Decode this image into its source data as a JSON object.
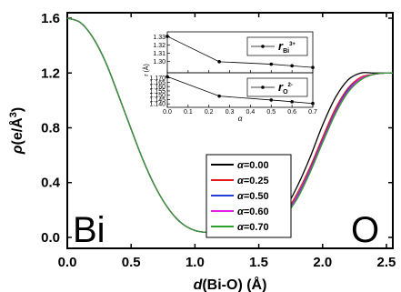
{
  "chart_data": [
    {
      "type": "line",
      "xlabel_parts": [
        "d",
        "(Bi-O) (Å)"
      ],
      "ylabel_parts": [
        "ρ",
        "(e/Å",
        "3",
        ")"
      ],
      "xlim": [
        0.0,
        2.55
      ],
      "ylim": [
        -0.08,
        1.64
      ],
      "xticks": [
        0.0,
        0.5,
        1.0,
        1.5,
        2.0,
        2.5
      ],
      "xtick_labels": [
        "0.0",
        "0.5",
        "1.0",
        "1.5",
        "2.0",
        "2.5"
      ],
      "yticks": [
        0.0,
        0.4,
        0.8,
        1.2,
        1.6
      ],
      "ytick_labels": [
        "0.0",
        "0.4",
        "0.8",
        "1.2",
        "1.6"
      ],
      "annotations": {
        "left": "Bi",
        "right": "O"
      },
      "legend_placement": "center",
      "legend_symbol": "α",
      "series": [
        {
          "name": "=0.00",
          "color": "#000000",
          "x": [
            0.0,
            0.1,
            0.2,
            0.3,
            0.4,
            0.5,
            0.6,
            0.7,
            0.8,
            0.9,
            1.0,
            1.1,
            1.2,
            1.3,
            1.4,
            1.5,
            1.6,
            1.7,
            1.8,
            1.9,
            2.0,
            2.1,
            2.2,
            2.3,
            2.4,
            2.5,
            2.55
          ],
          "y": [
            1.6,
            1.57,
            1.46,
            1.28,
            1.04,
            0.79,
            0.55,
            0.35,
            0.2,
            0.1,
            0.05,
            0.035,
            0.03,
            0.03,
            0.035,
            0.05,
            0.1,
            0.2,
            0.37,
            0.58,
            0.82,
            1.02,
            1.15,
            1.2,
            1.2,
            1.2,
            1.2
          ]
        },
        {
          "name": "=0.25",
          "color": "#e41a1c",
          "x": [
            0.0,
            0.1,
            0.2,
            0.3,
            0.4,
            0.5,
            0.6,
            0.7,
            0.8,
            0.9,
            1.0,
            1.1,
            1.2,
            1.3,
            1.4,
            1.5,
            1.6,
            1.7,
            1.8,
            1.9,
            2.0,
            2.1,
            2.2,
            2.3,
            2.4,
            2.5,
            2.55
          ],
          "y": [
            1.6,
            1.57,
            1.46,
            1.28,
            1.04,
            0.79,
            0.55,
            0.35,
            0.2,
            0.1,
            0.05,
            0.035,
            0.03,
            0.03,
            0.035,
            0.05,
            0.09,
            0.17,
            0.32,
            0.51,
            0.73,
            0.94,
            1.09,
            1.17,
            1.19,
            1.2,
            1.2
          ]
        },
        {
          "name": "=0.50",
          "color": "#1f3fd8",
          "x": [
            0.0,
            0.1,
            0.2,
            0.3,
            0.4,
            0.5,
            0.6,
            0.7,
            0.8,
            0.9,
            1.0,
            1.1,
            1.2,
            1.3,
            1.4,
            1.5,
            1.6,
            1.7,
            1.8,
            1.9,
            2.0,
            2.1,
            2.2,
            2.3,
            2.4,
            2.5,
            2.55
          ],
          "y": [
            1.6,
            1.57,
            1.46,
            1.28,
            1.04,
            0.79,
            0.55,
            0.35,
            0.2,
            0.1,
            0.05,
            0.035,
            0.03,
            0.03,
            0.035,
            0.05,
            0.085,
            0.16,
            0.3,
            0.49,
            0.71,
            0.92,
            1.08,
            1.16,
            1.19,
            1.2,
            1.2
          ]
        },
        {
          "name": "=0.60",
          "color": "#e020e0",
          "x": [
            0.0,
            0.1,
            0.2,
            0.3,
            0.4,
            0.5,
            0.6,
            0.7,
            0.8,
            0.9,
            1.0,
            1.1,
            1.2,
            1.3,
            1.4,
            1.5,
            1.6,
            1.7,
            1.8,
            1.9,
            2.0,
            2.1,
            2.2,
            2.3,
            2.4,
            2.5,
            2.55
          ],
          "y": [
            1.6,
            1.57,
            1.46,
            1.28,
            1.04,
            0.79,
            0.55,
            0.35,
            0.2,
            0.1,
            0.05,
            0.035,
            0.03,
            0.03,
            0.035,
            0.05,
            0.085,
            0.16,
            0.29,
            0.48,
            0.7,
            0.91,
            1.07,
            1.16,
            1.19,
            1.2,
            1.2
          ]
        },
        {
          "name": "=0.70",
          "color": "#2ca02c",
          "x": [
            0.0,
            0.1,
            0.2,
            0.3,
            0.4,
            0.5,
            0.6,
            0.7,
            0.8,
            0.9,
            1.0,
            1.1,
            1.2,
            1.3,
            1.4,
            1.5,
            1.6,
            1.7,
            1.8,
            1.9,
            2.0,
            2.1,
            2.2,
            2.3,
            2.4,
            2.5,
            2.55
          ],
          "y": [
            1.6,
            1.57,
            1.46,
            1.28,
            1.04,
            0.79,
            0.55,
            0.35,
            0.2,
            0.1,
            0.05,
            0.035,
            0.03,
            0.03,
            0.035,
            0.05,
            0.08,
            0.155,
            0.28,
            0.47,
            0.69,
            0.9,
            1.06,
            1.15,
            1.19,
            1.2,
            1.2
          ]
        }
      ]
    },
    {
      "type": "line",
      "role": "inset",
      "xlabel": "α",
      "ylabel": "r (Å)",
      "xlim": [
        0.0,
        0.7
      ],
      "xticks": [
        0.0,
        0.1,
        0.2,
        0.3,
        0.4,
        0.5,
        0.6,
        0.7
      ],
      "xtick_labels": [
        "0.0",
        "0.1",
        "0.2",
        "0.3",
        "0.4",
        "0.5",
        "0.6",
        "0.7"
      ],
      "panels": [
        {
          "legend_main": "r",
          "legend_sub": "Bi",
          "legend_sup": "3+",
          "ylim": [
            1.286,
            1.336
          ],
          "yticks": [
            1.3,
            1.31,
            1.32,
            1.33
          ],
          "ytick_labels": [
            "1.30",
            "1.31",
            "1.32",
            "1.33"
          ],
          "x": [
            0.0,
            0.25,
            0.5,
            0.6,
            0.7
          ],
          "y": [
            1.3305,
            1.2995,
            1.2965,
            1.2945,
            1.2925
          ]
        },
        {
          "legend_main": "r",
          "legend_sub": "O",
          "legend_sup": "2-",
          "ylim": [
            1.136,
            1.176
          ],
          "yticks": [
            1.14,
            1.145,
            1.15,
            1.155,
            1.16,
            1.165,
            1.17
          ],
          "ytick_labels": [
            "1.140",
            "1.145",
            "1.150",
            "1.155",
            "1.160",
            "1.165",
            "1.170"
          ],
          "x": [
            0.0,
            0.25,
            0.5,
            0.6,
            0.7
          ],
          "y": [
            1.1715,
            1.149,
            1.1445,
            1.1425,
            1.1405
          ]
        }
      ]
    }
  ]
}
